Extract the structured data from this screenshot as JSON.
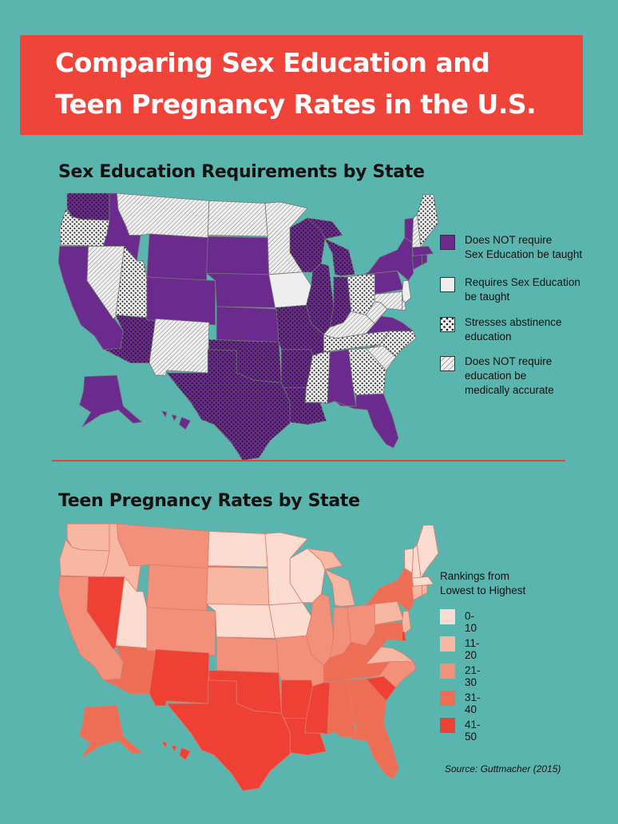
{
  "title": {
    "line1": "Comparing Sex Education and",
    "line2": "Teen Pregnancy Rates in the U.S."
  },
  "section1": {
    "title": "Sex Education Requirements by State",
    "legend": [
      {
        "key": "purple",
        "label_lines": [
          "Does NOT require",
          "Sex Education be taught"
        ]
      },
      {
        "key": "white",
        "label_lines": [
          "Requires Sex Education",
          "be taught"
        ]
      },
      {
        "key": "dots",
        "label_lines": [
          "Stresses abstinence",
          "education"
        ]
      },
      {
        "key": "hatch",
        "label_lines": [
          "Does NOT require",
          "education be",
          "medically accurate"
        ]
      }
    ]
  },
  "section2": {
    "title": "Teen Pregnancy Rates by State",
    "legend_title_lines": [
      "Rankings from",
      "Lowest to Highest"
    ],
    "legend": [
      {
        "label": "0-10",
        "color": "#fcdcd0"
      },
      {
        "label": "11-20",
        "color": "#f7b7a3"
      },
      {
        "label": "21-30",
        "color": "#f2907a"
      },
      {
        "label": "31-40",
        "color": "#ee6d55"
      },
      {
        "label": "41-50",
        "color": "#ee4034"
      }
    ]
  },
  "source": "Source:  Guttmacher (2015)",
  "colors": {
    "background": "#5ab5ae",
    "banner": "#f0433a",
    "purple": "#6a2a8e",
    "white_state": "#eeeeee",
    "divider": "#e0463b"
  },
  "map1": {
    "states": [
      {
        "id": "WA",
        "fill": "purple",
        "pattern": "dots"
      },
      {
        "id": "OR",
        "fill": "white",
        "pattern": "dots"
      },
      {
        "id": "CA",
        "fill": "purple",
        "pattern": "none"
      },
      {
        "id": "ID",
        "fill": "purple",
        "pattern": "none"
      },
      {
        "id": "NV",
        "fill": "white",
        "pattern": "hatch"
      },
      {
        "id": "MT",
        "fill": "white",
        "pattern": "hatch"
      },
      {
        "id": "WY",
        "fill": "purple",
        "pattern": "none"
      },
      {
        "id": "UT",
        "fill": "white",
        "pattern": "dots"
      },
      {
        "id": "AZ",
        "fill": "purple",
        "pattern": "dots"
      },
      {
        "id": "CO",
        "fill": "purple",
        "pattern": "none"
      },
      {
        "id": "NM",
        "fill": "white",
        "pattern": "hatch"
      },
      {
        "id": "ND",
        "fill": "white",
        "pattern": "hatch"
      },
      {
        "id": "SD",
        "fill": "purple",
        "pattern": "none"
      },
      {
        "id": "NE",
        "fill": "purple",
        "pattern": "none"
      },
      {
        "id": "KS",
        "fill": "purple",
        "pattern": "none"
      },
      {
        "id": "OK",
        "fill": "purple",
        "pattern": "dots"
      },
      {
        "id": "TX",
        "fill": "purple",
        "pattern": "dots"
      },
      {
        "id": "MN",
        "fill": "white",
        "pattern": "hatch"
      },
      {
        "id": "IA",
        "fill": "white",
        "pattern": "none"
      },
      {
        "id": "MO",
        "fill": "purple",
        "pattern": "dots"
      },
      {
        "id": "AR",
        "fill": "purple",
        "pattern": "dots"
      },
      {
        "id": "LA",
        "fill": "purple",
        "pattern": "dots"
      },
      {
        "id": "WI",
        "fill": "purple",
        "pattern": "dots"
      },
      {
        "id": "IL",
        "fill": "purple",
        "pattern": "dots"
      },
      {
        "id": "MI",
        "fill": "purple",
        "pattern": "dots"
      },
      {
        "id": "IN",
        "fill": "purple",
        "pattern": "dots"
      },
      {
        "id": "OH",
        "fill": "white",
        "pattern": "dots"
      },
      {
        "id": "KY",
        "fill": "white",
        "pattern": "hatch"
      },
      {
        "id": "TN",
        "fill": "white",
        "pattern": "dots"
      },
      {
        "id": "MS",
        "fill": "white",
        "pattern": "dots"
      },
      {
        "id": "AL",
        "fill": "purple",
        "pattern": "none"
      },
      {
        "id": "GA",
        "fill": "white",
        "pattern": "dots"
      },
      {
        "id": "FL",
        "fill": "purple",
        "pattern": "none"
      },
      {
        "id": "SC",
        "fill": "white",
        "pattern": "hatch"
      },
      {
        "id": "NC",
        "fill": "white",
        "pattern": "dots"
      },
      {
        "id": "VA",
        "fill": "purple",
        "pattern": "none"
      },
      {
        "id": "WV",
        "fill": "white",
        "pattern": "hatch"
      },
      {
        "id": "PA",
        "fill": "purple",
        "pattern": "none"
      },
      {
        "id": "NY",
        "fill": "purple",
        "pattern": "none"
      },
      {
        "id": "VT",
        "fill": "purple",
        "pattern": "none"
      },
      {
        "id": "NH",
        "fill": "white",
        "pattern": "hatch"
      },
      {
        "id": "ME",
        "fill": "white",
        "pattern": "dots"
      },
      {
        "id": "MA",
        "fill": "purple",
        "pattern": "none"
      },
      {
        "id": "CT",
        "fill": "purple",
        "pattern": "none"
      },
      {
        "id": "RI",
        "fill": "purple",
        "pattern": "none"
      },
      {
        "id": "NJ",
        "fill": "white",
        "pattern": "none"
      },
      {
        "id": "DE",
        "fill": "white",
        "pattern": "hatch"
      },
      {
        "id": "MD",
        "fill": "white",
        "pattern": "hatch"
      },
      {
        "id": "AK",
        "fill": "purple",
        "pattern": "none"
      },
      {
        "id": "HI",
        "fill": "purple",
        "pattern": "none"
      }
    ]
  },
  "map2": {
    "states": [
      {
        "id": "WA",
        "rank_group": "11-20"
      },
      {
        "id": "OR",
        "rank_group": "11-20"
      },
      {
        "id": "CA",
        "rank_group": "21-30"
      },
      {
        "id": "ID",
        "rank_group": "11-20"
      },
      {
        "id": "NV",
        "rank_group": "41-50"
      },
      {
        "id": "MT",
        "rank_group": "21-30"
      },
      {
        "id": "WY",
        "rank_group": "21-30"
      },
      {
        "id": "UT",
        "rank_group": "0-10"
      },
      {
        "id": "AZ",
        "rank_group": "31-40"
      },
      {
        "id": "CO",
        "rank_group": "21-30"
      },
      {
        "id": "NM",
        "rank_group": "41-50"
      },
      {
        "id": "ND",
        "rank_group": "0-10"
      },
      {
        "id": "SD",
        "rank_group": "11-20"
      },
      {
        "id": "NE",
        "rank_group": "0-10"
      },
      {
        "id": "KS",
        "rank_group": "21-30"
      },
      {
        "id": "OK",
        "rank_group": "41-50"
      },
      {
        "id": "TX",
        "rank_group": "41-50"
      },
      {
        "id": "MN",
        "rank_group": "0-10"
      },
      {
        "id": "IA",
        "rank_group": "0-10"
      },
      {
        "id": "MO",
        "rank_group": "21-30"
      },
      {
        "id": "AR",
        "rank_group": "41-50"
      },
      {
        "id": "LA",
        "rank_group": "41-50"
      },
      {
        "id": "WI",
        "rank_group": "0-10"
      },
      {
        "id": "IL",
        "rank_group": "21-30"
      },
      {
        "id": "MI",
        "rank_group": "11-20"
      },
      {
        "id": "IN",
        "rank_group": "21-30"
      },
      {
        "id": "OH",
        "rank_group": "21-30"
      },
      {
        "id": "KY",
        "rank_group": "31-40"
      },
      {
        "id": "TN",
        "rank_group": "31-40"
      },
      {
        "id": "MS",
        "rank_group": "41-50"
      },
      {
        "id": "AL",
        "rank_group": "31-40"
      },
      {
        "id": "GA",
        "rank_group": "31-40"
      },
      {
        "id": "FL",
        "rank_group": "31-40"
      },
      {
        "id": "SC",
        "rank_group": "41-50"
      },
      {
        "id": "NC",
        "rank_group": "21-30"
      },
      {
        "id": "VA",
        "rank_group": "11-20"
      },
      {
        "id": "WV",
        "rank_group": "31-40"
      },
      {
        "id": "PA",
        "rank_group": "11-20"
      },
      {
        "id": "NY",
        "rank_group": "31-40"
      },
      {
        "id": "VT",
        "rank_group": "0-10"
      },
      {
        "id": "NH",
        "rank_group": "0-10"
      },
      {
        "id": "ME",
        "rank_group": "0-10"
      },
      {
        "id": "MA",
        "rank_group": "0-10"
      },
      {
        "id": "CT",
        "rank_group": "11-20"
      },
      {
        "id": "RI",
        "rank_group": "11-20"
      },
      {
        "id": "NJ",
        "rank_group": "11-20"
      },
      {
        "id": "DE",
        "rank_group": "41-50"
      },
      {
        "id": "MD",
        "rank_group": "31-40"
      },
      {
        "id": "AK",
        "rank_group": "31-40"
      },
      {
        "id": "HI",
        "rank_group": "41-50"
      }
    ]
  }
}
